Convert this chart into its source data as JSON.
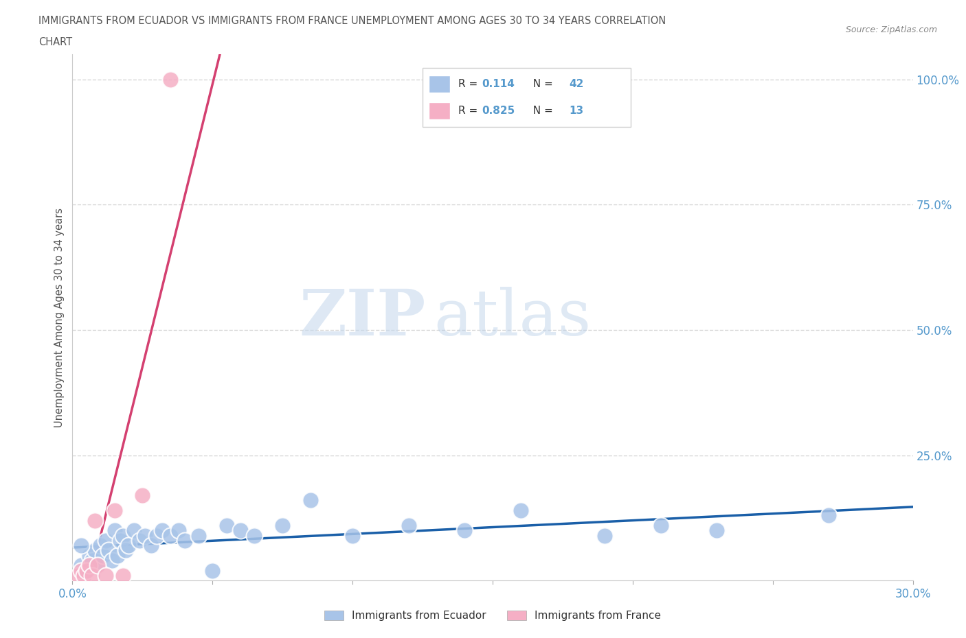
{
  "title_line1": "IMMIGRANTS FROM ECUADOR VS IMMIGRANTS FROM FRANCE UNEMPLOYMENT AMONG AGES 30 TO 34 YEARS CORRELATION",
  "title_line2": "CHART",
  "source": "Source: ZipAtlas.com",
  "ylabel": "Unemployment Among Ages 30 to 34 years",
  "ecuador_color": "#a8c4e8",
  "france_color": "#f5afc5",
  "ecuador_line_color": "#1a5fa8",
  "france_line_color": "#d44070",
  "watermark_zip": "ZIP",
  "watermark_atlas": "atlas",
  "ecuador_scatter_x": [
    0.003,
    0.005,
    0.006,
    0.007,
    0.008,
    0.009,
    0.01,
    0.011,
    0.012,
    0.013,
    0.014,
    0.015,
    0.016,
    0.017,
    0.018,
    0.019,
    0.02,
    0.022,
    0.024,
    0.026,
    0.028,
    0.03,
    0.032,
    0.035,
    0.038,
    0.04,
    0.045,
    0.05,
    0.055,
    0.06,
    0.065,
    0.075,
    0.085,
    0.1,
    0.12,
    0.14,
    0.16,
    0.19,
    0.21,
    0.23,
    0.27,
    0.003
  ],
  "ecuador_scatter_y": [
    0.03,
    0.02,
    0.05,
    0.04,
    0.06,
    0.03,
    0.07,
    0.05,
    0.08,
    0.06,
    0.04,
    0.1,
    0.05,
    0.08,
    0.09,
    0.06,
    0.07,
    0.1,
    0.08,
    0.09,
    0.07,
    0.09,
    0.1,
    0.09,
    0.1,
    0.08,
    0.09,
    0.02,
    0.11,
    0.1,
    0.09,
    0.11,
    0.16,
    0.09,
    0.11,
    0.1,
    0.14,
    0.09,
    0.11,
    0.1,
    0.13,
    0.07
  ],
  "france_scatter_x": [
    0.002,
    0.003,
    0.004,
    0.005,
    0.006,
    0.007,
    0.008,
    0.009,
    0.012,
    0.015,
    0.018,
    0.025,
    0.035
  ],
  "france_scatter_y": [
    0.01,
    0.02,
    0.01,
    0.02,
    0.03,
    0.01,
    0.12,
    0.03,
    0.01,
    0.14,
    0.01,
    0.17,
    1.0
  ],
  "xlim": [
    0.0,
    0.3
  ],
  "ylim": [
    0.0,
    1.05
  ],
  "yticks": [
    0.25,
    0.5,
    0.75,
    1.0
  ],
  "ytick_labels": [
    "25.0%",
    "50.0%",
    "75.0%",
    "100.0%"
  ],
  "xtick_positions": [
    0.0,
    0.05,
    0.1,
    0.15,
    0.2,
    0.25,
    0.3
  ],
  "xtick_labels": [
    "0.0%",
    "",
    "",
    "",
    "",
    "",
    "30.0%"
  ],
  "R_ecuador": 0.114,
  "N_ecuador": 42,
  "R_france": 0.825,
  "N_france": 13,
  "title_color": "#555555",
  "tick_color": "#5599cc",
  "label_color": "#555555",
  "grid_color": "#cccccc",
  "source_color": "#888888"
}
